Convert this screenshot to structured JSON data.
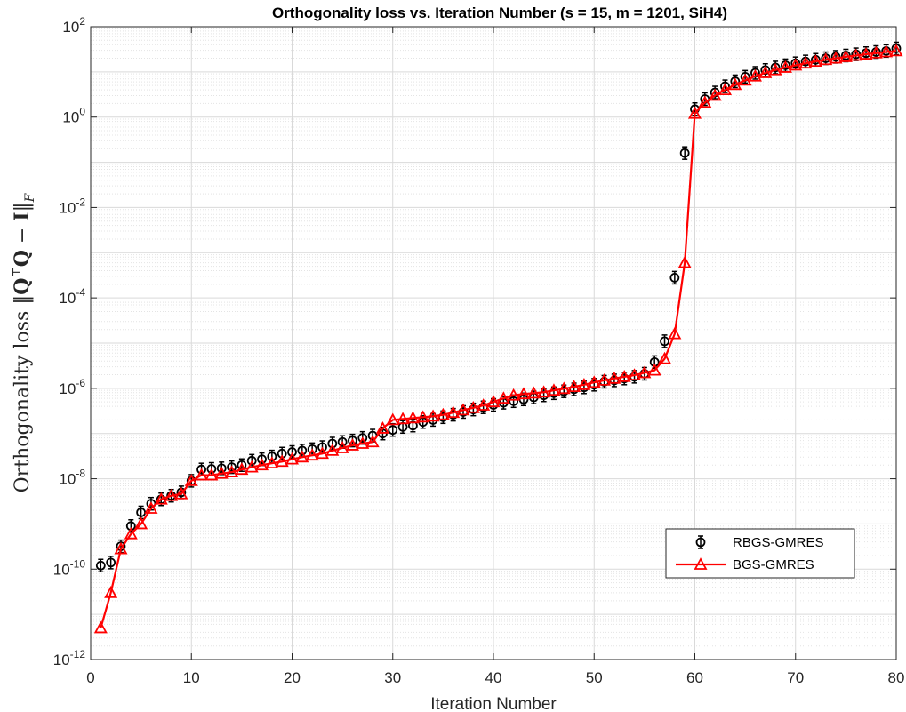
{
  "chart_data": {
    "type": "line",
    "title": "Orthogonality loss vs. Iteration Number (s = 15, m = 1201, SiH4)",
    "xlabel": "Iteration Number",
    "ylabel": "Orthogonality loss ||Q⊤Q − I||F",
    "xlim": [
      0,
      80
    ],
    "ylim": [
      1e-12,
      100
    ],
    "yscale": "log",
    "grid": true,
    "legend_position": "lower-right",
    "xticks": [
      "0",
      "10",
      "20",
      "30",
      "40",
      "50",
      "60",
      "70",
      "80"
    ],
    "yticks": [
      {
        "base": "10",
        "exp": "2"
      },
      {
        "base": "10",
        "exp": "0"
      },
      {
        "base": "10",
        "exp": "-2"
      },
      {
        "base": "10",
        "exp": "-4"
      },
      {
        "base": "10",
        "exp": "-6"
      },
      {
        "base": "10",
        "exp": "-8"
      },
      {
        "base": "10",
        "exp": "-10"
      },
      {
        "base": "10",
        "exp": "-12"
      }
    ],
    "ytick_values": [
      100,
      1,
      0.01,
      0.0001,
      1e-06,
      1e-08,
      1e-10,
      1e-12
    ],
    "x": [
      1,
      2,
      3,
      4,
      5,
      6,
      7,
      8,
      9,
      10,
      11,
      12,
      13,
      14,
      15,
      16,
      17,
      18,
      19,
      20,
      21,
      22,
      23,
      24,
      25,
      26,
      27,
      28,
      29,
      30,
      31,
      32,
      33,
      34,
      35,
      36,
      37,
      38,
      39,
      40,
      41,
      42,
      43,
      44,
      45,
      46,
      47,
      48,
      49,
      50,
      51,
      52,
      53,
      54,
      55,
      56,
      57,
      58,
      59,
      60,
      61,
      62,
      63,
      64,
      65,
      66,
      67,
      68,
      69,
      70,
      71,
      72,
      73,
      74,
      75,
      76,
      77,
      78,
      79,
      80
    ],
    "series": [
      {
        "name": "RBGS-GMRES",
        "color": "#000000",
        "marker": "circle",
        "line": false,
        "values": [
          1.2e-10,
          1.4e-10,
          3.2e-10,
          9e-10,
          1.8e-09,
          2.8e-09,
          3.5e-09,
          4.2e-09,
          5e-09,
          9e-09,
          1.6e-08,
          1.65e-08,
          1.7e-08,
          1.8e-08,
          2e-08,
          2.5e-08,
          2.7e-08,
          3.1e-08,
          3.6e-08,
          3.9e-08,
          4.2e-08,
          4.5e-08,
          5e-08,
          6e-08,
          6.5e-08,
          7e-08,
          8e-08,
          9e-08,
          1e-07,
          1.2e-07,
          1.4e-07,
          1.5e-07,
          1.8e-07,
          2e-07,
          2.3e-07,
          2.6e-07,
          3e-07,
          3.4e-07,
          3.8e-07,
          4.3e-07,
          4.8e-07,
          5.2e-07,
          5.7e-07,
          6.3e-07,
          7e-07,
          7.8e-07,
          8.6e-07,
          9.5e-07,
          1.05e-06,
          1.2e-06,
          1.4e-06,
          1.5e-06,
          1.65e-06,
          1.8e-06,
          2.1e-06,
          3.8e-06,
          1.1e-05,
          0.00028,
          0.16,
          1.5,
          2.5,
          3.5,
          4.8,
          6.2,
          7.8,
          9.5,
          11,
          12.5,
          14,
          15.5,
          17,
          18.5,
          20,
          21.5,
          23,
          24.5,
          26,
          27.5,
          29,
          33
        ]
      },
      {
        "name": "BGS-GMRES",
        "color": "#ff0000",
        "marker": "triangle",
        "line": true,
        "values": [
          5e-12,
          3e-11,
          2.8e-10,
          6e-10,
          1e-09,
          2.2e-09,
          3.5e-09,
          4.2e-09,
          4.6e-09,
          9e-09,
          1.2e-08,
          1.2e-08,
          1.3e-08,
          1.4e-08,
          1.6e-08,
          1.8e-08,
          2e-08,
          2.2e-08,
          2.4e-08,
          2.7e-08,
          3e-08,
          3.3e-08,
          3.6e-08,
          4.2e-08,
          4.8e-08,
          5.5e-08,
          6e-08,
          6.5e-08,
          1.3e-07,
          2e-07,
          2.1e-07,
          2.2e-07,
          2.3e-07,
          2.4e-07,
          2.6e-07,
          2.9e-07,
          3.3e-07,
          3.7e-07,
          4.2e-07,
          5e-07,
          6e-07,
          7e-07,
          7.5e-07,
          7.8e-07,
          8.2e-07,
          9e-07,
          9.8e-07,
          1.08e-06,
          1.2e-06,
          1.35e-06,
          1.5e-06,
          1.65e-06,
          1.8e-06,
          1.95e-06,
          2.2e-06,
          2.5e-06,
          4.5e-06,
          1.6e-05,
          0.0006,
          1.2,
          2.1,
          3,
          4,
          5.2,
          6.5,
          8,
          9.5,
          11,
          12.5,
          14,
          15.5,
          17,
          18.5,
          20,
          21.5,
          23,
          24.5,
          26,
          27.5,
          29
        ]
      }
    ]
  }
}
